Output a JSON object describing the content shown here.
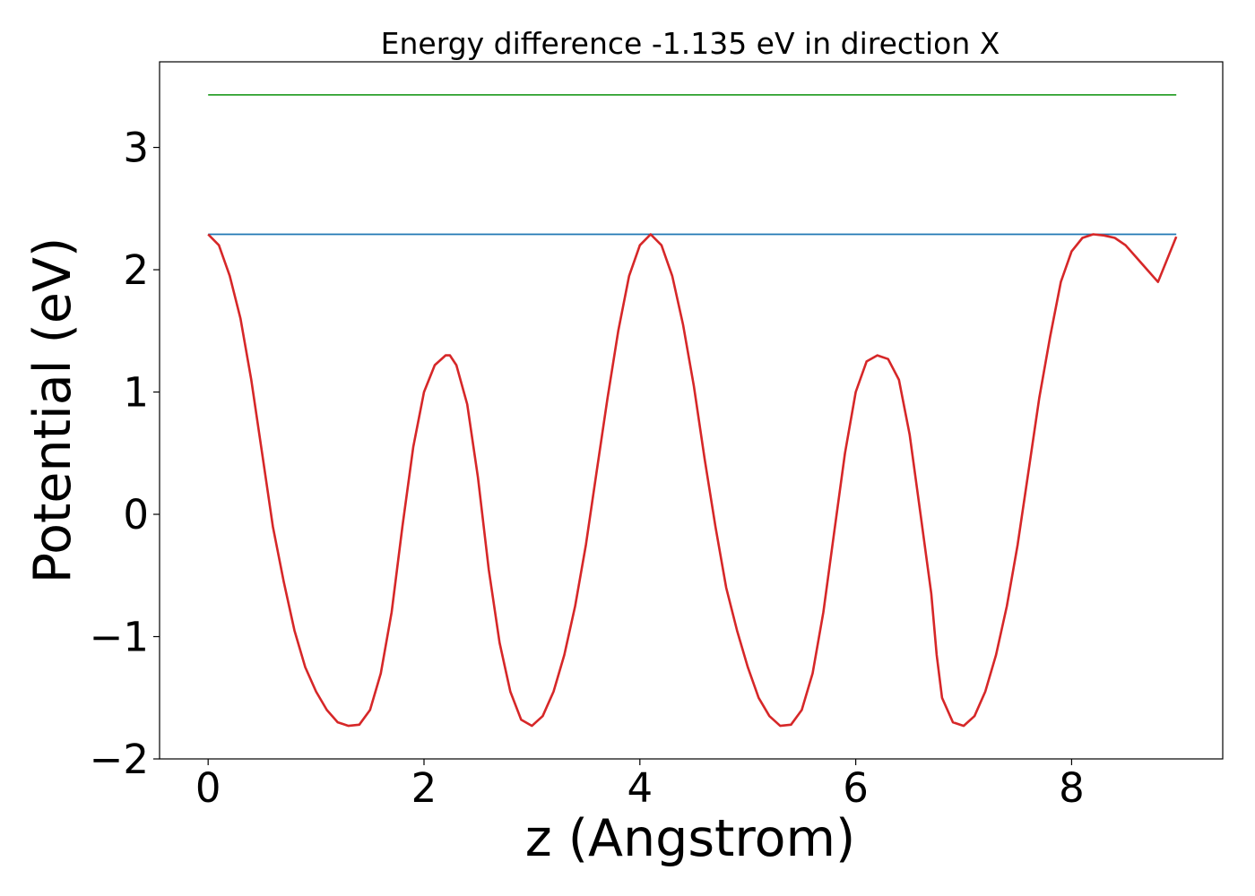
{
  "chart_data": {
    "type": "line",
    "title": "Energy difference -1.135 eV in direction X",
    "xlabel": "z (Angstrom)",
    "ylabel": "Potential (eV)",
    "xlim": [
      -0.45,
      9.4
    ],
    "ylim": [
      -2.0,
      3.7
    ],
    "xticks": [
      0,
      2,
      4,
      6,
      8
    ],
    "yticks": [
      -2,
      -1,
      0,
      1,
      2,
      3
    ],
    "xtick_labels": [
      "0",
      "2",
      "4",
      "6",
      "8"
    ],
    "ytick_labels": [
      "−2",
      "−1",
      "0",
      "1",
      "2",
      "3"
    ],
    "grid": false,
    "legend": false,
    "series": [
      {
        "color": "#2ca02c",
        "x": [
          0,
          8.97
        ],
        "y": [
          3.43,
          3.43
        ]
      },
      {
        "color": "#1f77b4",
        "x": [
          0,
          8.97
        ],
        "y": [
          2.29,
          2.29
        ]
      },
      {
        "color": "#d62728",
        "x": [
          0,
          0.1,
          0.2,
          0.3,
          0.4,
          0.5,
          0.6,
          0.7,
          0.8,
          0.9,
          1.0,
          1.1,
          1.2,
          1.3,
          1.4,
          1.5,
          1.6,
          1.7,
          1.8,
          1.9,
          2.0,
          2.1,
          2.2,
          2.24,
          2.3,
          2.4,
          2.5,
          2.6,
          2.7,
          2.8,
          2.9,
          3.0,
          3.1,
          3.2,
          3.3,
          3.4,
          3.5,
          3.6,
          3.7,
          3.8,
          3.9,
          4.0,
          4.1,
          4.2,
          4.3,
          4.4,
          4.5,
          4.6,
          4.7,
          4.8,
          4.9,
          5.0,
          5.1,
          5.2,
          5.3,
          5.4,
          5.5,
          5.6,
          5.7,
          5.8,
          5.9,
          6.0,
          6.1,
          6.2,
          6.3,
          6.4,
          6.5,
          6.6,
          6.7,
          6.75,
          6.8,
          6.9,
          7.0,
          7.1,
          7.2,
          7.3,
          7.4,
          7.5,
          7.6,
          7.7,
          7.8,
          7.9,
          8.0,
          8.1,
          8.2,
          8.3,
          8.4,
          8.5,
          8.6,
          8.7,
          8.8,
          8.97
        ],
        "y": [
          2.29,
          2.2,
          1.95,
          1.6,
          1.1,
          0.5,
          -0.1,
          -0.55,
          -0.95,
          -1.25,
          -1.45,
          -1.6,
          -1.7,
          -1.73,
          -1.72,
          -1.6,
          -1.3,
          -0.8,
          -0.1,
          0.55,
          1.0,
          1.22,
          1.3,
          1.3,
          1.22,
          0.9,
          0.3,
          -0.45,
          -1.05,
          -1.45,
          -1.68,
          -1.73,
          -1.65,
          -1.45,
          -1.15,
          -0.75,
          -0.25,
          0.35,
          0.95,
          1.5,
          1.95,
          2.2,
          2.29,
          2.2,
          1.95,
          1.55,
          1.05,
          0.45,
          -0.1,
          -0.6,
          -0.95,
          -1.25,
          -1.5,
          -1.65,
          -1.73,
          -1.72,
          -1.6,
          -1.3,
          -0.8,
          -0.15,
          0.5,
          1.0,
          1.25,
          1.3,
          1.27,
          1.1,
          0.65,
          0.0,
          -0.65,
          -1.15,
          -1.5,
          -1.7,
          -1.73,
          -1.65,
          -1.45,
          -1.15,
          -0.75,
          -0.25,
          0.35,
          0.95,
          1.45,
          1.9,
          2.15,
          2.26,
          2.29,
          2.28,
          2.26,
          2.2,
          2.1,
          2.0,
          1.9,
          2.27
        ]
      }
    ]
  }
}
